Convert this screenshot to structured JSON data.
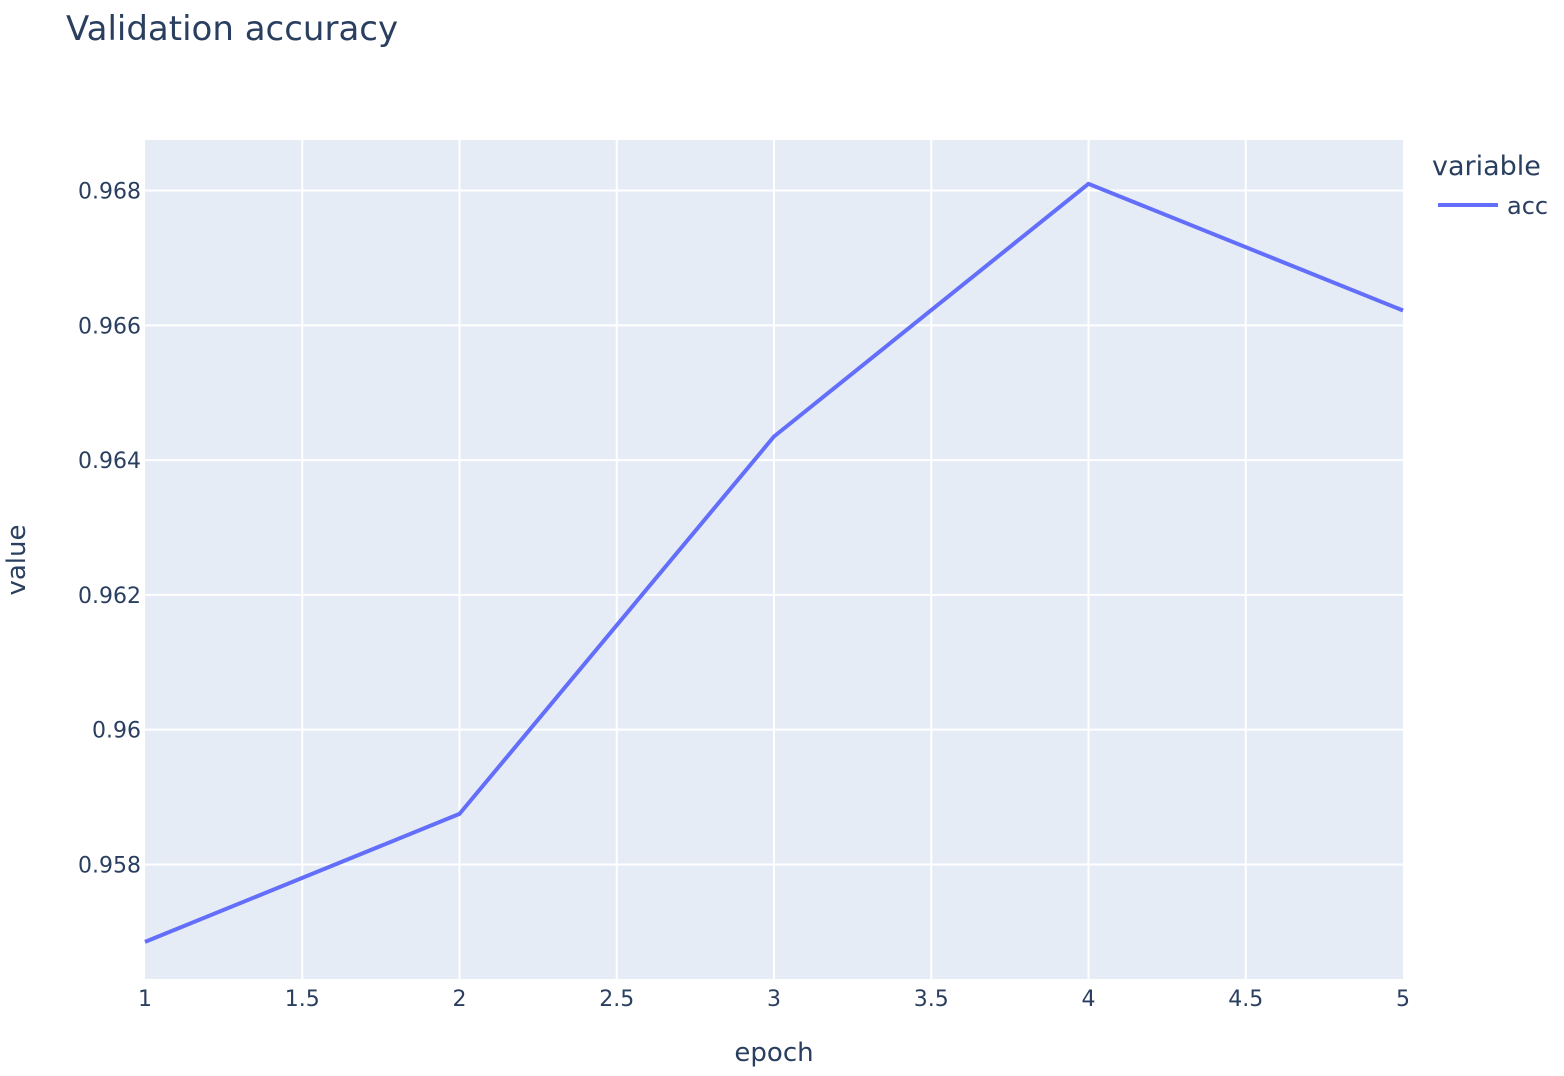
{
  "chart_data": {
    "type": "line",
    "title": "Validation accuracy",
    "xlabel": "epoch",
    "ylabel": "value",
    "xlim": [
      1,
      5
    ],
    "ylim": [
      0.9563,
      0.96875
    ],
    "x_ticks": [
      1,
      1.5,
      2,
      2.5,
      3,
      3.5,
      4,
      4.5,
      5
    ],
    "x_tick_labels": [
      "1",
      "1.5",
      "2",
      "2.5",
      "3",
      "3.5",
      "4",
      "4.5",
      "5"
    ],
    "y_ticks": [
      0.958,
      0.96,
      0.962,
      0.964,
      0.966,
      0.968
    ],
    "y_tick_labels": [
      "0.958",
      "0.96",
      "0.962",
      "0.964",
      "0.966",
      "0.968"
    ],
    "grid": true,
    "legend": {
      "title": "variable",
      "position": "right"
    },
    "x": [
      1,
      2,
      3,
      4,
      5
    ],
    "series": [
      {
        "name": "acc",
        "color": "#636efa",
        "values": [
          0.95685,
          0.95875,
          0.96435,
          0.9681,
          0.96622
        ]
      }
    ],
    "plot_background": "#e5ecf6",
    "grid_color": "#ffffff",
    "text_color": "#2a3f5f"
  }
}
